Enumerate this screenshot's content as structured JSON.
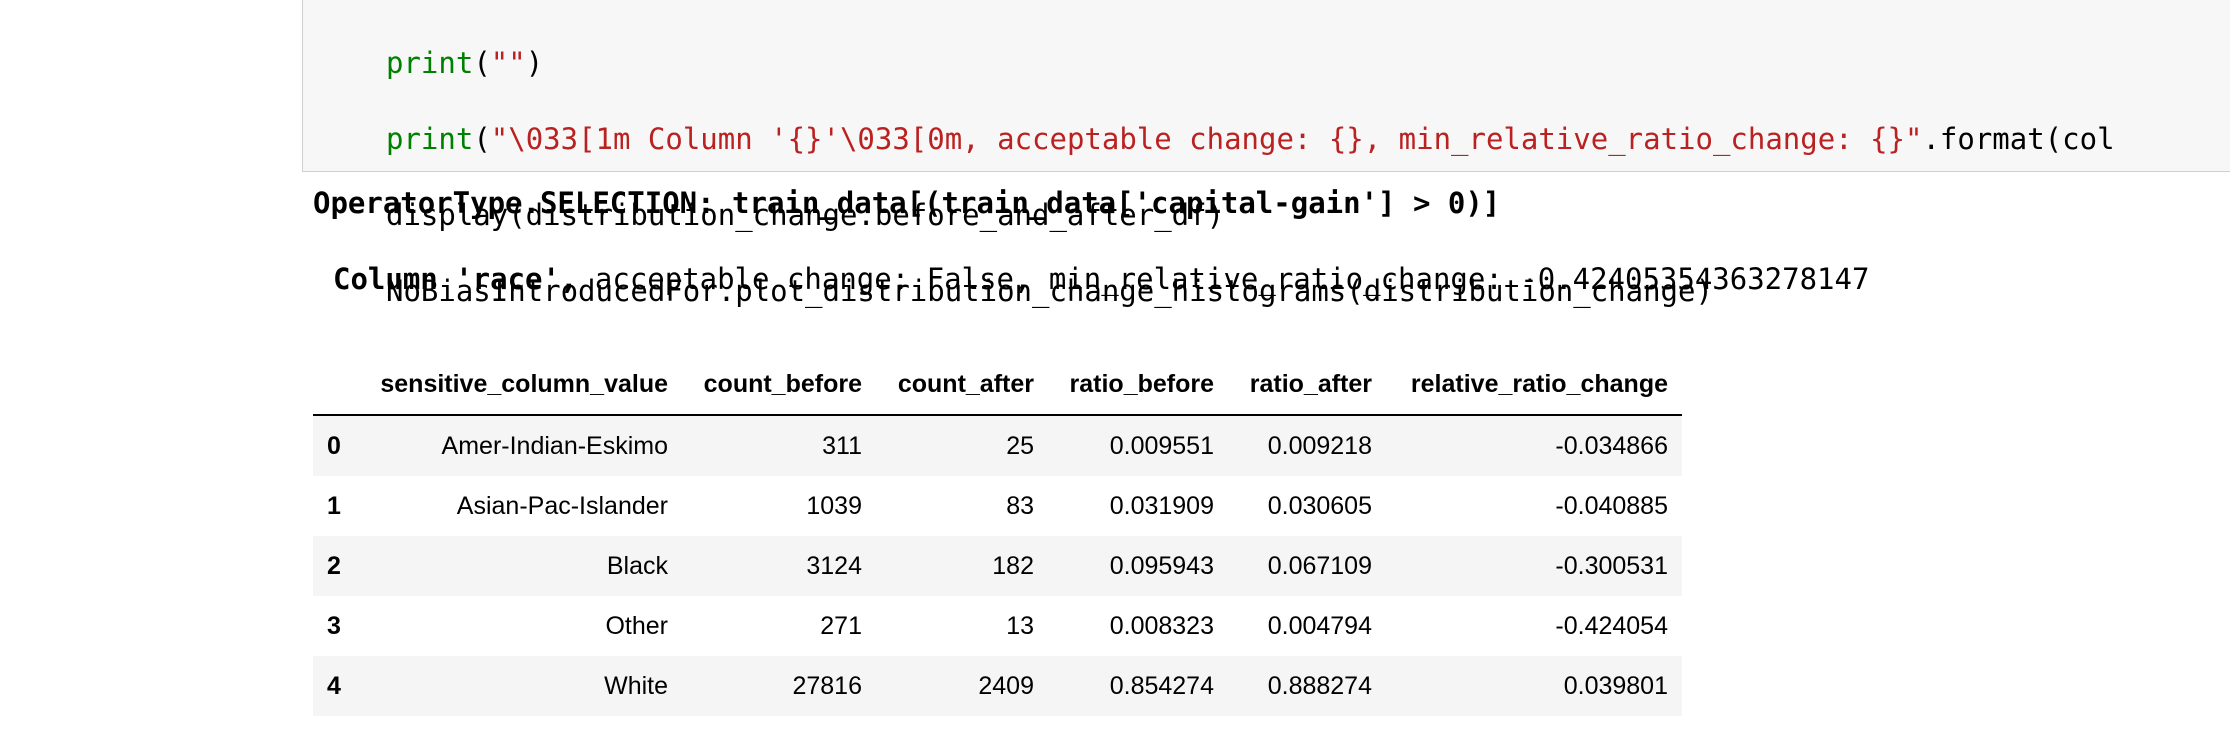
{
  "code": {
    "lines": [
      [
        "print",
        "(",
        "\"\"",
        ")"
      ],
      [
        "print",
        "(",
        "\"\\033[1m Column '{}'\\033[0m, acceptable change: {}, min_relative_ratio_change: {}\"",
        ".format(col"
      ],
      [
        "display(distribution_change.before_and_after_df)"
      ],
      [
        "NoBiasIntroducedFor.plot_distribution_change_histograms(distribution_change)"
      ]
    ]
  },
  "output": {
    "operator": "OperatorType.SELECTION: train_data[(train_data['capital-gain'] > 0)]",
    "column_bold": "Column 'race',",
    "column_rest": " acceptable change: False, min_relative_ratio_change: -0.42405354363278147",
    "table": {
      "header": [
        "",
        "sensitive_column_value",
        "count_before",
        "count_after",
        "ratio_before",
        "ratio_after",
        "relative_ratio_change"
      ],
      "rows": [
        [
          "0",
          "Amer-Indian-Eskimo",
          "311",
          "25",
          "0.009551",
          "0.009218",
          "-0.034866"
        ],
        [
          "1",
          "Asian-Pac-Islander",
          "1039",
          "83",
          "0.031909",
          "0.030605",
          "-0.040885"
        ],
        [
          "2",
          "Black",
          "3124",
          "182",
          "0.095943",
          "0.067109",
          "-0.300531"
        ],
        [
          "3",
          "Other",
          "271",
          "13",
          "0.008323",
          "0.004794",
          "-0.424054"
        ],
        [
          "4",
          "White",
          "27816",
          "2409",
          "0.854274",
          "0.888274",
          "0.039801"
        ]
      ]
    }
  }
}
